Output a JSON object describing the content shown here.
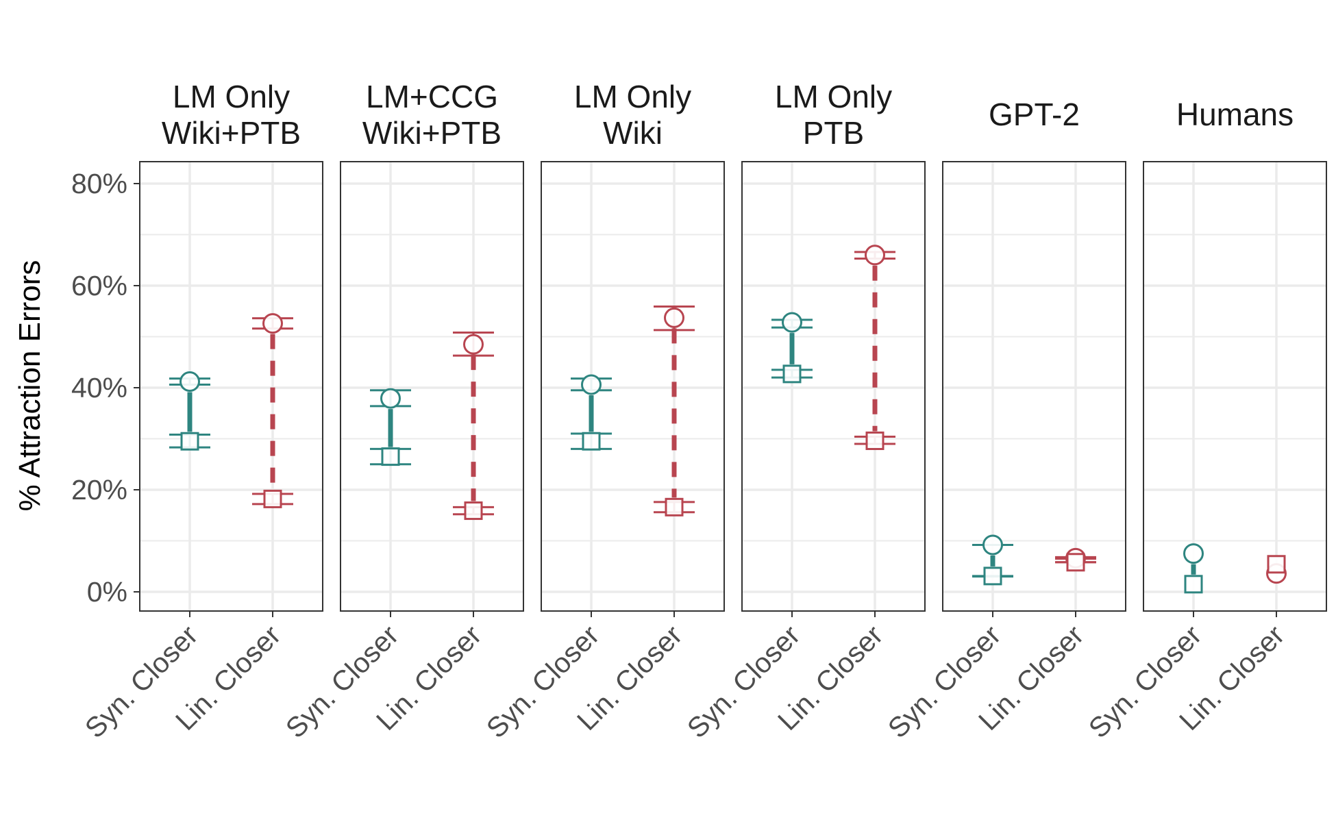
{
  "chart_data": {
    "type": "scatter",
    "ylabel": "% Attraction Errors",
    "xlabel": "",
    "y_ticks": [
      "0%",
      "20%",
      "40%",
      "60%",
      "80%"
    ],
    "y_tick_values": [
      0,
      20,
      40,
      60,
      80
    ],
    "ylim": [
      -4,
      84
    ],
    "categories": [
      "Syn. Closer",
      "Lin. Closer"
    ],
    "grid": true,
    "legend": "none",
    "colors": {
      "syn": "#2e8580",
      "lin": "#b84550",
      "frame": "#333333",
      "grid": "#ebebeb"
    },
    "marker_shapes": {
      "first": "circle",
      "second": "square"
    },
    "facets": [
      {
        "title": [
          "LM Only",
          "Wiki+PTB"
        ],
        "syn": {
          "circle": 41.2,
          "circle_err": [
            40.6,
            41.8
          ],
          "square": 29.5,
          "square_err": [
            28.3,
            30.8
          ]
        },
        "lin": {
          "circle": 52.6,
          "circle_err": [
            51.6,
            53.6
          ],
          "square": 18.2,
          "square_err": [
            17.2,
            19.2
          ]
        }
      },
      {
        "title": [
          "LM+CCG",
          "Wiki+PTB"
        ],
        "syn": {
          "circle": 37.9,
          "circle_err": [
            36.4,
            39.5
          ],
          "square": 26.5,
          "square_err": [
            25.0,
            28.0
          ]
        },
        "lin": {
          "circle": 48.5,
          "circle_err": [
            46.3,
            50.8
          ],
          "square": 15.9,
          "square_err": [
            15.2,
            16.6
          ]
        }
      },
      {
        "title": [
          "LM Only",
          "Wiki"
        ],
        "syn": {
          "circle": 40.6,
          "circle_err": [
            39.5,
            41.8
          ],
          "square": 29.5,
          "square_err": [
            28.0,
            31.0
          ]
        },
        "lin": {
          "circle": 53.7,
          "circle_err": [
            51.3,
            55.9
          ],
          "square": 16.6,
          "square_err": [
            15.6,
            17.6
          ]
        }
      },
      {
        "title": [
          "LM Only",
          "PTB"
        ],
        "syn": {
          "circle": 52.8,
          "circle_err": [
            51.8,
            53.3
          ],
          "square": 42.7,
          "square_err": [
            42.0,
            43.5
          ]
        },
        "lin": {
          "circle": 66.0,
          "circle_err": [
            65.3,
            66.6
          ],
          "square": 29.6,
          "square_err": [
            29.0,
            30.4
          ]
        }
      },
      {
        "title": [
          "GPT-2"
        ],
        "syn": {
          "circle": 9.2,
          "circle_err": [
            9.2,
            9.2
          ],
          "square": 3.1,
          "square_err": [
            3.0,
            3.1
          ]
        },
        "lin": {
          "circle": 6.6,
          "circle_err": [
            5.8,
            6.8
          ],
          "square": 5.8,
          "square_err": [
            5.8,
            6.5
          ]
        }
      },
      {
        "title": [
          "Humans"
        ],
        "syn": {
          "circle": 7.5,
          "circle_err": null,
          "square": 1.5,
          "square_err": null
        },
        "lin": {
          "circle": 3.6,
          "circle_err": null,
          "square": 5.4,
          "square_err": null
        }
      }
    ]
  }
}
